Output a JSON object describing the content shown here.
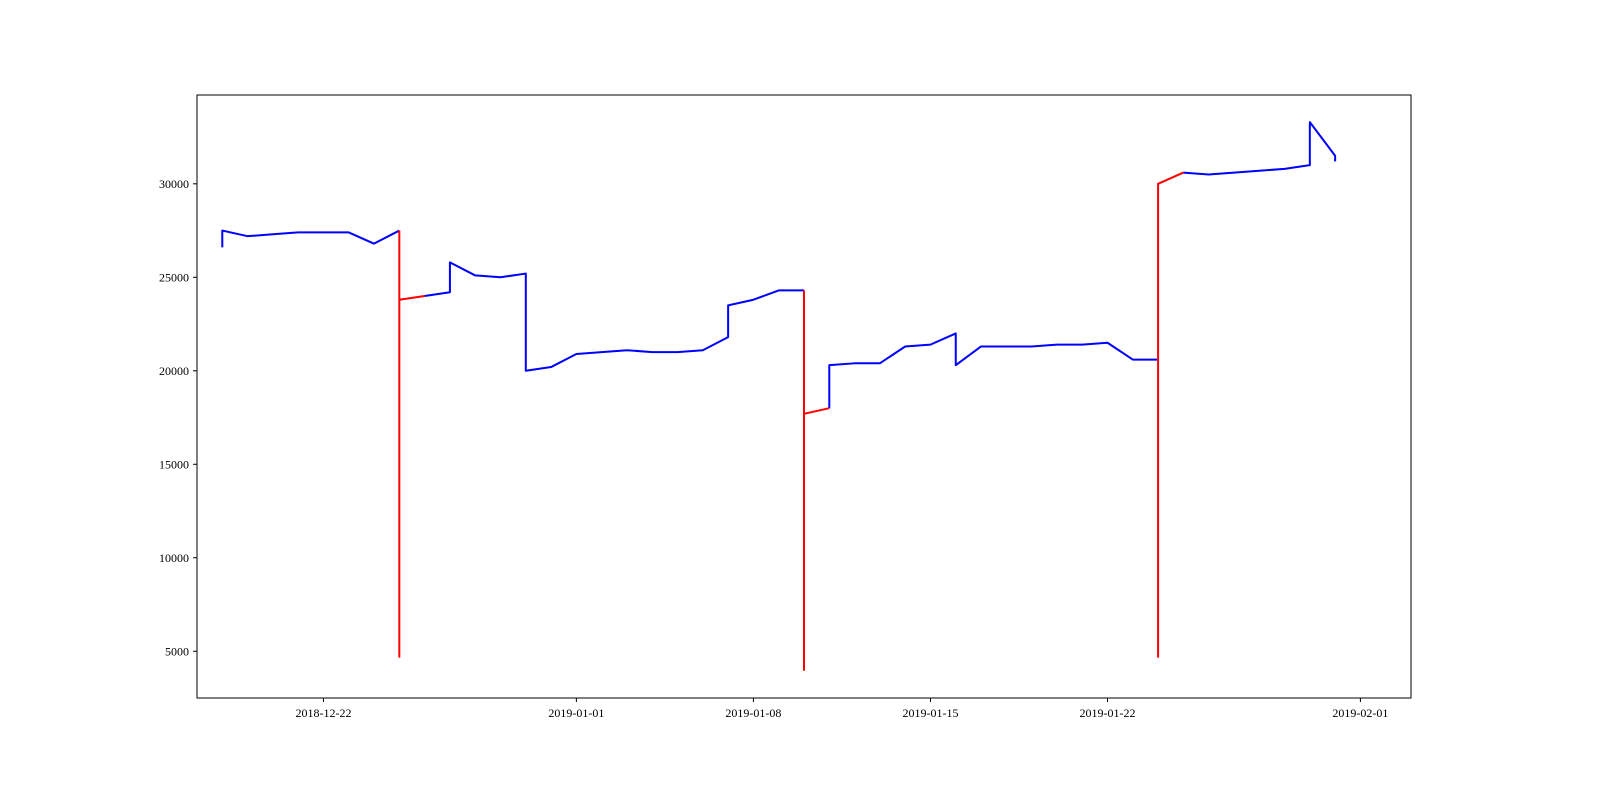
{
  "chart_data": {
    "type": "line",
    "x": [
      "2018-12-18",
      "2018-12-18",
      "2018-12-19",
      "2018-12-20",
      "2018-12-21",
      "2018-12-22",
      "2018-12-23",
      "2018-12-24",
      "2018-12-25",
      "2018-12-25",
      "2018-12-25",
      "2018-12-26",
      "2018-12-27",
      "2018-12-27",
      "2018-12-28",
      "2018-12-29",
      "2018-12-30",
      "2018-12-30",
      "2018-12-31",
      "2019-01-01",
      "2019-01-02",
      "2019-01-03",
      "2019-01-04",
      "2019-01-05",
      "2019-01-06",
      "2019-01-07",
      "2019-01-07",
      "2019-01-08",
      "2019-01-09",
      "2019-01-10",
      "2019-01-10",
      "2019-01-10",
      "2019-01-11",
      "2019-01-11",
      "2019-01-12",
      "2019-01-13",
      "2019-01-14",
      "2019-01-15",
      "2019-01-16",
      "2019-01-16",
      "2019-01-17",
      "2019-01-18",
      "2019-01-19",
      "2019-01-20",
      "2019-01-21",
      "2019-01-22",
      "2019-01-23",
      "2019-01-24",
      "2019-01-24",
      "2019-01-24",
      "2019-01-25",
      "2019-01-26",
      "2019-01-27",
      "2019-01-28",
      "2019-01-29",
      "2019-01-30",
      "2019-01-30",
      "2019-01-31",
      "2019-01-31"
    ],
    "series": [
      {
        "color": "#0000ff",
        "values": [
          26600,
          27500,
          27200,
          27300,
          27400,
          27400,
          27400,
          26800,
          27500,
          null,
          null,
          24000,
          24200,
          25800,
          25100,
          25000,
          25200,
          20000,
          20200,
          20900,
          21000,
          21100,
          21000,
          21000,
          21100,
          21800,
          23500,
          23800,
          24300,
          24300,
          null,
          null,
          18000,
          20300,
          20400,
          20400,
          21300,
          21400,
          22000,
          20300,
          21300,
          21300,
          21300,
          21400,
          21400,
          21500,
          20600,
          20600,
          null,
          null,
          30600,
          30500,
          30600,
          30700,
          30800,
          31000,
          33300,
          31500,
          31200
        ]
      },
      {
        "color": "#ff0000",
        "values": [
          null,
          null,
          null,
          null,
          null,
          null,
          null,
          null,
          27500,
          4700,
          23800,
          24000,
          null,
          null,
          null,
          null,
          null,
          null,
          null,
          null,
          null,
          null,
          null,
          null,
          null,
          null,
          null,
          null,
          null,
          24300,
          4000,
          17700,
          18000,
          null,
          null,
          null,
          null,
          null,
          null,
          null,
          null,
          null,
          null,
          null,
          null,
          null,
          null,
          20600,
          4700,
          30000,
          30600,
          null,
          null,
          null,
          null,
          null,
          null,
          null,
          null
        ]
      }
    ],
    "xlim": [
      "2018-12-17",
      "2019-02-03"
    ],
    "xticks": [
      "2018-12-22",
      "2019-01-01",
      "2019-01-08",
      "2019-01-15",
      "2019-01-22",
      "2019-02-01"
    ],
    "ylim": [
      2500,
      34750
    ],
    "yticks": [
      5000,
      10000,
      15000,
      20000,
      25000,
      30000
    ]
  }
}
